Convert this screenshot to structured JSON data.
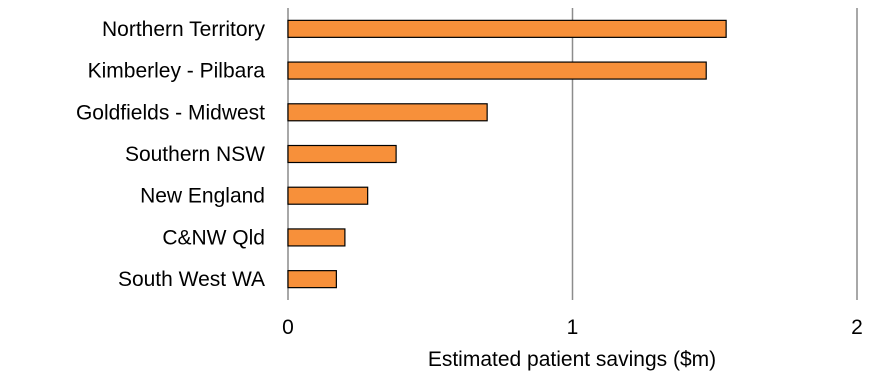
{
  "chart_data": {
    "type": "bar",
    "orientation": "horizontal",
    "categories": [
      "Northern Territory",
      "Kimberley - Pilbara",
      "Goldfields - Midwest",
      "Southern NSW",
      "New England",
      "C&NW Qld",
      "South West WA"
    ],
    "values": [
      1.54,
      1.47,
      0.7,
      0.38,
      0.28,
      0.2,
      0.17
    ],
    "xlabel": "Estimated patient savings ($m)",
    "ylabel": "",
    "title": "",
    "xlim": [
      0,
      2
    ],
    "xticks": [
      "0",
      "1",
      "2"
    ],
    "grid": "vertical",
    "legend": "none",
    "bar_color": "#F7903A",
    "bar_edge_color": "#000000",
    "grid_color": "#8c8c8c"
  }
}
